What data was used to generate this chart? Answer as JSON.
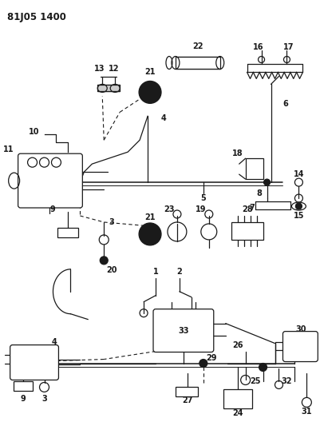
{
  "title": "81J05 1400",
  "bg": "#ffffff",
  "lc": "#1a1a1a",
  "lw": 0.9,
  "fs": 7.0
}
